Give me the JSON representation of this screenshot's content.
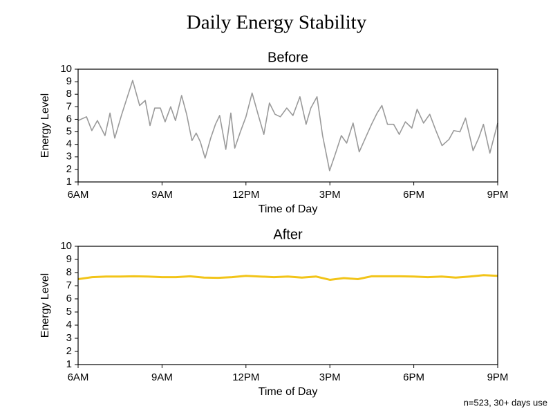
{
  "title": "Daily Energy Stability",
  "footnote": "n=523, 30+ days use",
  "chart_data": [
    {
      "type": "line",
      "title": "Before",
      "xlabel": "Time of Day",
      "ylabel": "Energy Level",
      "color": "#9a9a9a",
      "x": [
        6.0,
        6.3,
        6.49,
        6.69,
        6.96,
        7.14,
        7.31,
        7.56,
        7.95,
        8.2,
        8.4,
        8.57,
        8.74,
        8.94,
        9.11,
        9.31,
        9.48,
        9.7,
        9.88,
        10.07,
        10.22,
        10.37,
        10.54,
        10.74,
        10.91,
        11.06,
        11.28,
        11.46,
        11.6,
        11.8,
        12.0,
        12.22,
        12.42,
        12.64,
        12.84,
        13.04,
        13.23,
        13.46,
        13.68,
        13.93,
        14.15,
        14.32,
        14.54,
        14.74,
        14.99,
        15.19,
        15.41,
        15.6,
        15.83,
        16.05,
        16.27,
        16.49,
        16.69,
        16.86,
        17.06,
        17.28,
        17.48,
        17.7,
        17.93,
        18.12,
        18.35,
        18.57,
        18.79,
        19.01,
        19.26,
        19.43,
        19.65,
        19.85,
        20.12,
        20.32,
        20.49,
        20.72,
        21.0
      ],
      "values": [
        5.9,
        6.2,
        5.1,
        5.9,
        4.7,
        6.5,
        4.5,
        6.4,
        9.1,
        7.1,
        7.5,
        5.5,
        6.9,
        6.9,
        5.8,
        7.0,
        5.9,
        7.9,
        6.4,
        4.3,
        4.9,
        4.2,
        2.9,
        4.5,
        5.6,
        6.3,
        3.6,
        6.5,
        3.7,
        5.0,
        6.2,
        8.1,
        6.5,
        4.8,
        7.3,
        6.4,
        6.2,
        6.9,
        6.3,
        7.8,
        5.6,
        6.9,
        7.8,
        4.7,
        1.9,
        3.2,
        4.7,
        4.1,
        5.7,
        3.4,
        4.5,
        5.6,
        6.5,
        7.1,
        5.6,
        5.6,
        4.8,
        5.8,
        5.3,
        6.8,
        5.7,
        6.4,
        5.1,
        3.9,
        4.4,
        5.1,
        5.0,
        6.1,
        3.5,
        4.5,
        5.6,
        3.3,
        5.7
      ],
      "xlim": [
        6,
        21
      ],
      "xticks": [
        {
          "value": 6,
          "label": "6AM"
        },
        {
          "value": 9,
          "label": "9AM"
        },
        {
          "value": 12,
          "label": "12PM"
        },
        {
          "value": 15,
          "label": "3PM"
        },
        {
          "value": 18,
          "label": "6PM"
        },
        {
          "value": 21,
          "label": "9PM"
        }
      ],
      "ylim": [
        1,
        10
      ],
      "yticks": [
        1,
        2,
        3,
        4,
        5,
        6,
        7,
        8,
        9,
        10
      ]
    },
    {
      "type": "line",
      "title": "After",
      "xlabel": "Time of Day",
      "ylabel": "Energy Level",
      "color": "#f2c418",
      "x": [
        6,
        6.5,
        7,
        7.5,
        8,
        8.5,
        9,
        9.5,
        10,
        10.5,
        11,
        11.5,
        12,
        12.5,
        13,
        13.5,
        14,
        14.5,
        15,
        15.5,
        16,
        16.5,
        17,
        17.5,
        18,
        18.5,
        19,
        19.5,
        20,
        20.5,
        21
      ],
      "values": [
        7.5,
        7.65,
        7.7,
        7.7,
        7.72,
        7.7,
        7.65,
        7.65,
        7.72,
        7.62,
        7.6,
        7.65,
        7.75,
        7.7,
        7.65,
        7.7,
        7.62,
        7.7,
        7.45,
        7.58,
        7.5,
        7.72,
        7.72,
        7.72,
        7.7,
        7.65,
        7.7,
        7.62,
        7.7,
        7.8,
        7.75
      ],
      "xlim": [
        6,
        21
      ],
      "xticks": [
        {
          "value": 6,
          "label": "6AM"
        },
        {
          "value": 9,
          "label": "9AM"
        },
        {
          "value": 12,
          "label": "12PM"
        },
        {
          "value": 15,
          "label": "3PM"
        },
        {
          "value": 18,
          "label": "6PM"
        },
        {
          "value": 21,
          "label": "9PM"
        }
      ],
      "ylim": [
        1,
        10
      ],
      "yticks": [
        1,
        2,
        3,
        4,
        5,
        6,
        7,
        8,
        9,
        10
      ]
    }
  ]
}
